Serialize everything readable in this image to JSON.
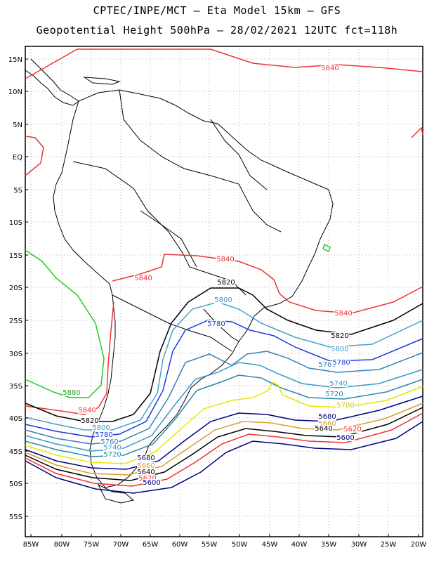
{
  "title_line1": "CPTEC/INPE/MCT –  Eta Model 15km – GFS",
  "title_line2": "Geopotential Height 500hPa – 28/02/2021 12UTC fct=118h",
  "lat_labels": [
    "15N",
    "10N",
    "5N",
    "EQ",
    "5S",
    "10S",
    "15S",
    "20S",
    "25S",
    "30S",
    "35S",
    "40S",
    "45S",
    "50S",
    "55S"
  ],
  "lon_labels": [
    "85W",
    "80W",
    "75W",
    "70W",
    "65W",
    "60W",
    "55W",
    "50W",
    "45W",
    "40W",
    "35W",
    "30W",
    "25W",
    "20W"
  ],
  "contour_colors": {
    "5600": "#000080",
    "5620": "#ee3333",
    "5640": "#000000",
    "5660": "#d8a030",
    "5680": "#000080",
    "5700": "#e8e800",
    "5720": "#2a8aaa",
    "5740": "#3a9acc",
    "5760": "#3a80b8",
    "5780": "#1a3ae0",
    "5800": "#4aa0c8",
    "5820": "#000000",
    "5840": "#ee3333",
    "5860": "#22cc22",
    "5880": "#22cc22"
  },
  "contour_labels": [
    {
      "text": "5840",
      "color": "#ee3333"
    },
    {
      "text": "5840",
      "color": "#ee3333"
    },
    {
      "text": "5840",
      "color": "#ee3333"
    },
    {
      "text": "5840",
      "color": "#ee3333"
    },
    {
      "text": "5820",
      "color": "#000000"
    },
    {
      "text": "5800",
      "color": "#3a9acc"
    },
    {
      "text": "5780",
      "color": "#1a3ae0"
    },
    {
      "text": "5820",
      "color": "#000000"
    },
    {
      "text": "5800",
      "color": "#3a9acc"
    },
    {
      "text": "5760",
      "color": "#3a80b8"
    },
    {
      "text": "5780",
      "color": "#1a3ae0"
    },
    {
      "text": "5740",
      "color": "#3a9acc"
    },
    {
      "text": "5720",
      "color": "#2a8aaa"
    },
    {
      "text": "5700",
      "color": "#c8c800"
    },
    {
      "text": "5680",
      "color": "#000080"
    },
    {
      "text": "5660",
      "color": "#d8a030"
    },
    {
      "text": "5640",
      "color": "#000000"
    },
    {
      "text": "5620",
      "color": "#ee3333"
    },
    {
      "text": "5600",
      "color": "#000080"
    },
    {
      "text": "5880",
      "color": "#22aa22"
    },
    {
      "text": "5840",
      "color": "#ee3333"
    },
    {
      "text": "5820",
      "color": "#000000"
    },
    {
      "text": "5800",
      "color": "#3a9acc"
    },
    {
      "text": "5780",
      "color": "#1a3ae0"
    },
    {
      "text": "5760",
      "color": "#3a80b8"
    },
    {
      "text": "5740",
      "color": "#3a9acc"
    },
    {
      "text": "5720",
      "color": "#2a8aaa"
    },
    {
      "text": "5680",
      "color": "#000080"
    },
    {
      "text": "5660",
      "color": "#d8a030"
    },
    {
      "text": "5640",
      "color": "#000000"
    },
    {
      "text": "5620",
      "color": "#ee3333"
    },
    {
      "text": "5600",
      "color": "#000080"
    }
  ]
}
